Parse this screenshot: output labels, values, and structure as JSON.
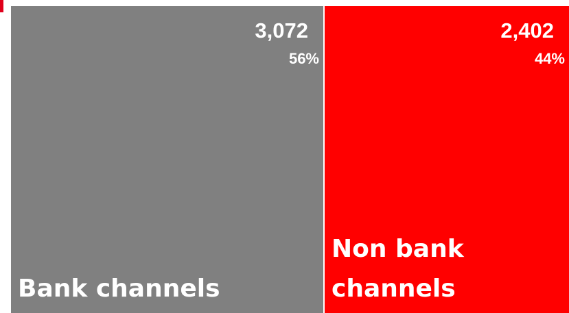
{
  "chart_data": {
    "type": "treemap",
    "categories": [
      "Bank channels",
      "Non bank channels"
    ],
    "label_lines": [
      [
        "Bank channels"
      ],
      [
        "Non bank",
        "channels"
      ]
    ],
    "values": [
      3072,
      2402
    ],
    "value_labels": [
      "3,072",
      "2,402"
    ],
    "percent_labels": [
      "56%",
      "44%"
    ],
    "colors": [
      "#808080",
      "#ff0000"
    ],
    "text_color": "#ffffff",
    "title": "",
    "legend": false
  }
}
